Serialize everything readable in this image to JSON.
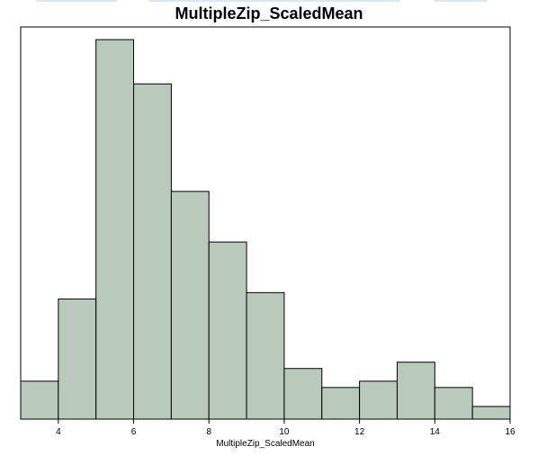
{
  "chart_data": {
    "type": "histogram",
    "title": "MultipleZip_ScaledMean",
    "xlabel": "MultipleZip_ScaledMean",
    "ylabel": "",
    "xlim": [
      3,
      16
    ],
    "ylim": [
      0,
      31
    ],
    "x_ticks": [
      4,
      6,
      8,
      10,
      12,
      14,
      16
    ],
    "bins": [
      {
        "x0": 3,
        "x1": 4,
        "count": 3
      },
      {
        "x0": 4,
        "x1": 5,
        "count": 9.5
      },
      {
        "x0": 5,
        "x1": 6,
        "count": 30
      },
      {
        "x0": 6,
        "x1": 7,
        "count": 26.5
      },
      {
        "x0": 7,
        "x1": 8,
        "count": 18
      },
      {
        "x0": 8,
        "x1": 9,
        "count": 14
      },
      {
        "x0": 9,
        "x1": 10,
        "count": 10
      },
      {
        "x0": 10,
        "x1": 11,
        "count": 4
      },
      {
        "x0": 11,
        "x1": 12,
        "count": 2.5
      },
      {
        "x0": 12,
        "x1": 13,
        "count": 3
      },
      {
        "x0": 13,
        "x1": 14,
        "count": 4.5
      },
      {
        "x0": 14,
        "x1": 15,
        "count": 2.5
      },
      {
        "x0": 15,
        "x1": 16,
        "count": 1
      }
    ],
    "grid": false,
    "legend": "none",
    "colors": {
      "bar_fill": "#b9cabd",
      "bar_stroke": "#000000",
      "frame": "#000000"
    }
  },
  "decor": {
    "top_strip_color": "#dde6f1"
  }
}
